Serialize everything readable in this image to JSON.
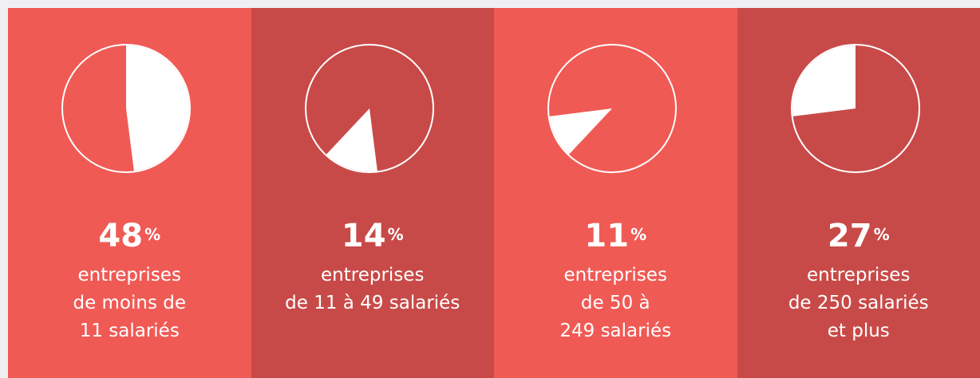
{
  "chart_data": {
    "type": "pie",
    "unit": "%",
    "colors": [
      "#f05a55",
      "#c84a48",
      "#f05a55",
      "#c84a48"
    ],
    "items": [
      {
        "value": 48,
        "label": [
          "entreprises",
          "de moins de",
          "11 salariés"
        ]
      },
      {
        "value": 14,
        "label": [
          "entreprises",
          "de 11 à 49 salariés"
        ]
      },
      {
        "value": 11,
        "label": [
          "entreprises",
          "de 50 à",
          "249 salariés"
        ]
      },
      {
        "value": 27,
        "label": [
          "entreprises",
          "de 250 salariés",
          "et plus"
        ]
      }
    ]
  }
}
